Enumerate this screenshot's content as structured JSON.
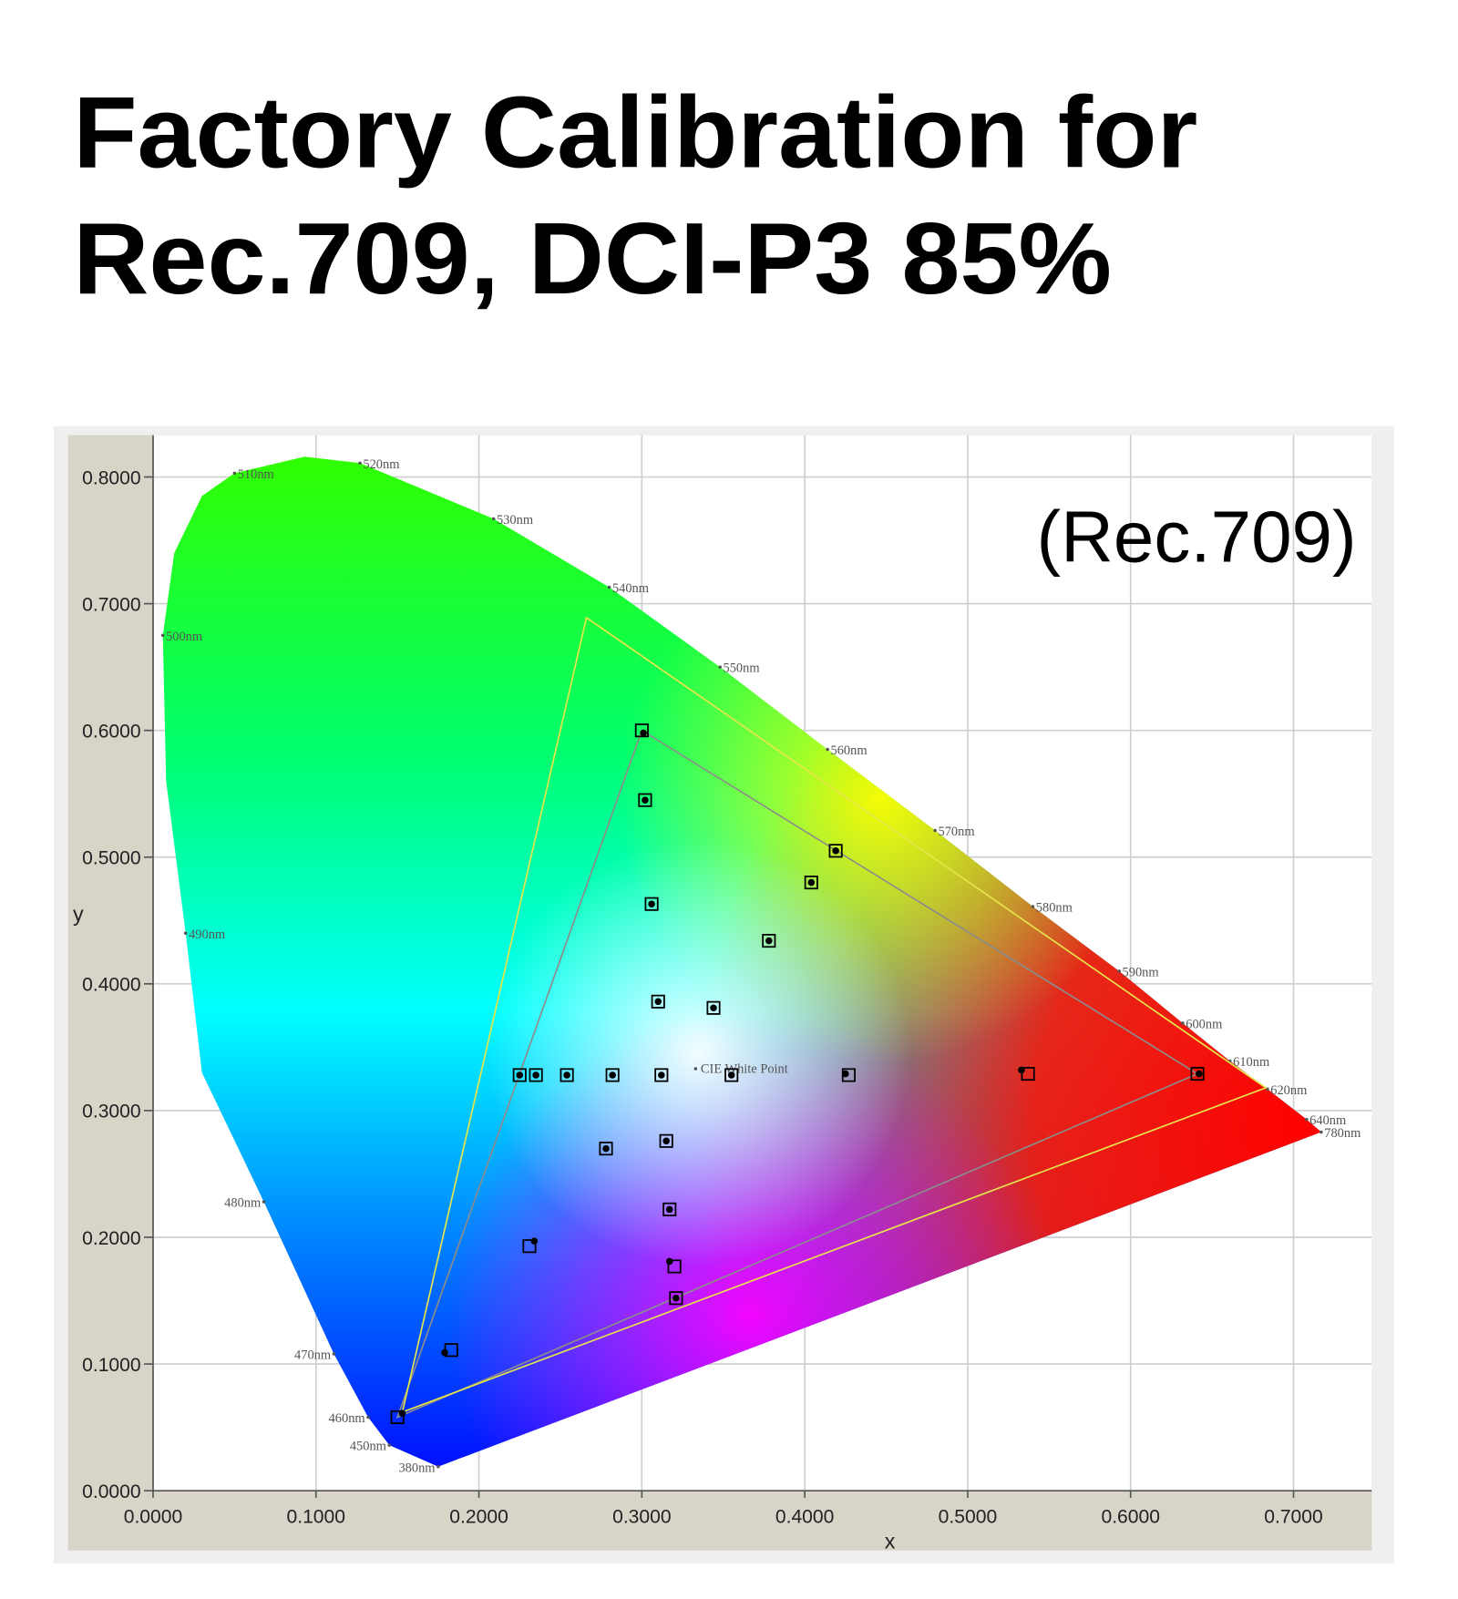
{
  "chart_data": {
    "type": "scatter",
    "title": [
      "Factory Calibration for",
      "Rec.709, DCI-P3 85%"
    ],
    "annotation": "(Rec.709)",
    "x_label": "x",
    "y_label": "y",
    "xlim": [
      0,
      0.748
    ],
    "ylim": [
      0,
      0.833
    ],
    "xticks": [
      {
        "value": 0,
        "label": "0.0000"
      },
      {
        "value": 0.1,
        "label": "0.1000"
      },
      {
        "value": 0.2,
        "label": "0.2000"
      },
      {
        "value": 0.3,
        "label": "0.3000"
      },
      {
        "value": 0.4,
        "label": "0.4000"
      },
      {
        "value": 0.5,
        "label": "0.5000"
      },
      {
        "value": 0.6,
        "label": "0.6000"
      },
      {
        "value": 0.7,
        "label": "0.7000"
      }
    ],
    "yticks": [
      {
        "value": 0,
        "label": "0.0000"
      },
      {
        "value": 0.1,
        "label": "0.1000"
      },
      {
        "value": 0.2,
        "label": "0.2000"
      },
      {
        "value": 0.3,
        "label": "0.3000"
      },
      {
        "value": 0.4,
        "label": "0.4000"
      },
      {
        "value": 0.5,
        "label": "0.5000"
      },
      {
        "value": 0.6,
        "label": "0.6000"
      },
      {
        "value": 0.7,
        "label": "0.7000"
      },
      {
        "value": 0.8,
        "label": "0.8000"
      }
    ],
    "grid": true,
    "locus": {
      "x": [
        0.175,
        0.145,
        0.132,
        0.111,
        0.068,
        0.03,
        0.02,
        0.008,
        0.006,
        0.013,
        0.03,
        0.05,
        0.093,
        0.127,
        0.209,
        0.28,
        0.348,
        0.414,
        0.48,
        0.54,
        0.593,
        0.632,
        0.661,
        0.684,
        0.708,
        0.717
      ],
      "y": [
        0.019,
        0.036,
        0.058,
        0.108,
        0.228,
        0.33,
        0.44,
        0.56,
        0.675,
        0.74,
        0.785,
        0.803,
        0.816,
        0.811,
        0.767,
        0.713,
        0.65,
        0.585,
        0.521,
        0.461,
        0.41,
        0.369,
        0.339,
        0.317,
        0.293,
        0.283
      ]
    },
    "wavelengths": [
      {
        "label": "380nm",
        "x": 0.175,
        "y": 0.019
      },
      {
        "label": "450nm",
        "x": 0.145,
        "y": 0.036
      },
      {
        "label": "460nm",
        "x": 0.132,
        "y": 0.058
      },
      {
        "label": "470nm",
        "x": 0.111,
        "y": 0.108
      },
      {
        "label": "480nm",
        "x": 0.068,
        "y": 0.228
      },
      {
        "label": "490nm",
        "x": 0.02,
        "y": 0.44
      },
      {
        "label": "500nm",
        "x": 0.006,
        "y": 0.675
      },
      {
        "label": "510nm",
        "x": 0.05,
        "y": 0.803
      },
      {
        "label": "520nm",
        "x": 0.127,
        "y": 0.811
      },
      {
        "label": "530nm",
        "x": 0.209,
        "y": 0.767
      },
      {
        "label": "540nm",
        "x": 0.28,
        "y": 0.713
      },
      {
        "label": "550nm",
        "x": 0.348,
        "y": 0.65
      },
      {
        "label": "560nm",
        "x": 0.414,
        "y": 0.585
      },
      {
        "label": "570nm",
        "x": 0.48,
        "y": 0.521
      },
      {
        "label": "580nm",
        "x": 0.54,
        "y": 0.461
      },
      {
        "label": "590nm",
        "x": 0.593,
        "y": 0.41
      },
      {
        "label": "600nm",
        "x": 0.632,
        "y": 0.369
      },
      {
        "label": "610nm",
        "x": 0.661,
        "y": 0.339
      },
      {
        "label": "620nm",
        "x": 0.684,
        "y": 0.317
      },
      {
        "label": "640nm",
        "x": 0.708,
        "y": 0.293
      },
      {
        "label": "780nm",
        "x": 0.717,
        "y": 0.283
      }
    ],
    "white_point": {
      "label": "CIE White Point",
      "x": 0.333,
      "y": 0.333
    },
    "triangles": [
      {
        "color": "#8c8c8c",
        "x": [
          0.641,
          0.3,
          0.15
        ],
        "y": [
          0.329,
          0.6,
          0.058
        ]
      },
      {
        "color": "#e6e64a",
        "x": [
          0.683,
          0.266,
          0.153
        ],
        "y": [
          0.318,
          0.689,
          0.062
        ]
      }
    ],
    "targets": {
      "color": "#000000",
      "x": [
        0.3,
        0.302,
        0.306,
        0.31,
        0.312,
        0.315,
        0.317,
        0.32,
        0.321,
        0.419,
        0.404,
        0.378,
        0.344,
        0.355,
        0.427,
        0.537,
        0.641,
        0.225,
        0.235,
        0.254,
        0.282,
        0.278,
        0.231,
        0.183,
        0.15
      ],
      "y": [
        0.6,
        0.545,
        0.463,
        0.386,
        0.328,
        0.276,
        0.222,
        0.177,
        0.152,
        0.505,
        0.48,
        0.434,
        0.381,
        0.328,
        0.328,
        0.329,
        0.329,
        0.328,
        0.328,
        0.328,
        0.328,
        0.27,
        0.193,
        0.111,
        0.058
      ]
    },
    "measured": {
      "color": "#000000",
      "x": [
        0.301,
        0.302,
        0.306,
        0.31,
        0.312,
        0.315,
        0.317,
        0.317,
        0.321,
        0.419,
        0.404,
        0.378,
        0.344,
        0.355,
        0.425,
        0.533,
        0.642,
        0.225,
        0.235,
        0.254,
        0.282,
        0.278,
        0.234,
        0.179,
        0.153
      ],
      "y": [
        0.598,
        0.545,
        0.463,
        0.386,
        0.328,
        0.276,
        0.222,
        0.181,
        0.152,
        0.505,
        0.48,
        0.434,
        0.381,
        0.328,
        0.329,
        0.332,
        0.329,
        0.328,
        0.328,
        0.328,
        0.328,
        0.27,
        0.197,
        0.109,
        0.061
      ]
    }
  }
}
